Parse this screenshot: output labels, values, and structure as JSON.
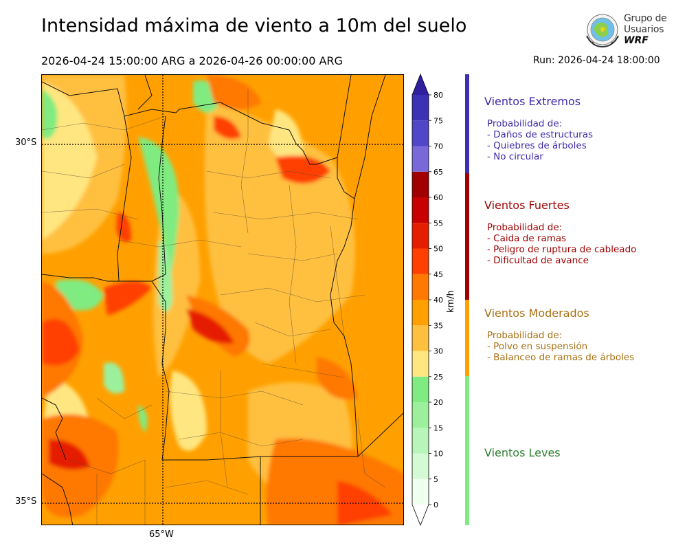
{
  "header": {
    "title": "Intensidad máxima de viento a 10m del suelo",
    "date_range": "2026-04-24 15:00:00 ARG  a  2026-04-26 00:00:00 ARG",
    "run": "Run: 2026-04-24 18:00:00"
  },
  "logo": {
    "line1": "Grupo de",
    "line2": "Usuarios",
    "line3": "WRF"
  },
  "map": {
    "lat_labels": [
      "30°S",
      "35°S"
    ],
    "lon_labels": [
      "65°W"
    ]
  },
  "colorbar": {
    "unit": "km/h",
    "ticks": [
      "0",
      "5",
      "10",
      "15",
      "20",
      "25",
      "30",
      "35",
      "40",
      "45",
      "50",
      "55",
      "60",
      "65",
      "70",
      "75",
      "80"
    ],
    "colors": [
      "#f0fff0",
      "#d4fad4",
      "#b8f5b8",
      "#9cf09c",
      "#80eb80",
      "#ffe680",
      "#ffc040",
      "#ffa000",
      "#ff7800",
      "#ff4000",
      "#e61e00",
      "#c80000",
      "#a00000",
      "#7868d8",
      "#5046c8",
      "#3c30b4",
      "#3020a0"
    ]
  },
  "categories": [
    {
      "title": "Vientos Extremos",
      "color": "#3c2aa8",
      "lines": [
        "Probabilidad de:",
        "- Daños de estructuras",
        "- Quiebres de árboles",
        "- No circular"
      ]
    },
    {
      "title": "Vientos Fuertes",
      "color": "#a00000",
      "lines": [
        "Probabilidad de:",
        "- Caida de ramas",
        "- Peligro de ruptura de cableado",
        "- Dificultad de avance"
      ]
    },
    {
      "title": "Vientos Moderados",
      "color": "#a86e10",
      "lines": [
        "Probabilidad de:",
        "- Polvo en suspensión",
        "- Balanceo de ramas de árboles"
      ]
    },
    {
      "title": "Vientos Leves",
      "color": "#2e7d32",
      "lines": []
    }
  ]
}
